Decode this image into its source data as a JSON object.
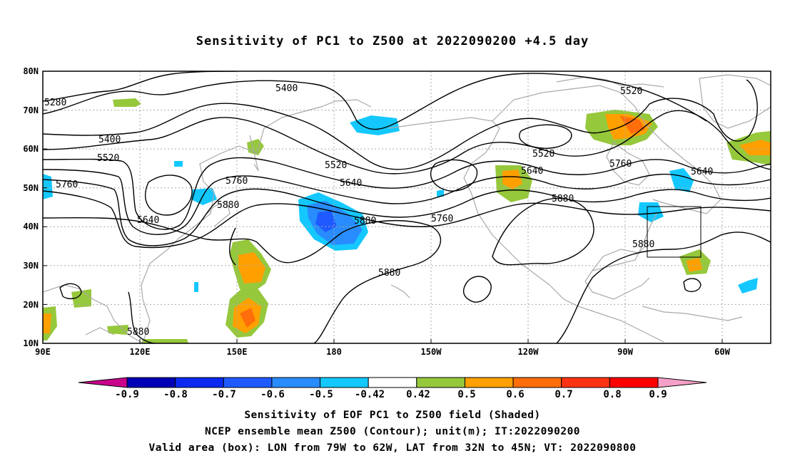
{
  "title": "Sensitivity of PC1 to Z500 at 2022090200 +4.5 day",
  "map": {
    "lon_labels": [
      "90E",
      "120E",
      "150E",
      "180",
      "150W",
      "120W",
      "90W",
      "60W"
    ],
    "lat_labels": [
      "80N",
      "70N",
      "60N",
      "50N",
      "40N",
      "30N",
      "20N",
      "10N"
    ],
    "extent": {
      "lon_min": 90,
      "lon_max": 315,
      "lat_min": 10,
      "lat_max": 80
    },
    "gridlines": "dotted",
    "coastline_color": "#a9a9a9"
  },
  "contour_labels": [
    "5280",
    "5400",
    "5400",
    "5520",
    "5520",
    "5520",
    "5520",
    "5640",
    "5640",
    "5640",
    "5640",
    "5760",
    "5760",
    "5760",
    "5760",
    "5880",
    "5880",
    "5880",
    "5880",
    "5880",
    "5880"
  ],
  "valid_box": {
    "lon_from": "79W",
    "lon_to": "62W",
    "lat_from": "32N",
    "lat_to": "45N"
  },
  "colorbar": {
    "labels": [
      "-0.9",
      "-0.8",
      "-0.7",
      "-0.6",
      "-0.5",
      "-0.42",
      "0.42",
      "0.5",
      "0.6",
      "0.7",
      "0.8",
      "0.9"
    ],
    "colors": [
      "#c8008c",
      "#0000b4",
      "#0a28f0",
      "#1e5aff",
      "#288cff",
      "#14c8ff",
      "#ffffff",
      "#96c83c",
      "#ffa000",
      "#ff6e0a",
      "#ff3214",
      "#ff0000",
      "#f5a0c8"
    ]
  },
  "captions": [
    "Sensitivity of EOF PC1 to Z500 field (Shaded)",
    "NCEP ensemble mean Z500 (Contour); unit(m); IT:2022090200",
    "Valid area (box): LON from 79W to 62W, LAT from 32N to 45N; VT: 2022090800"
  ]
}
